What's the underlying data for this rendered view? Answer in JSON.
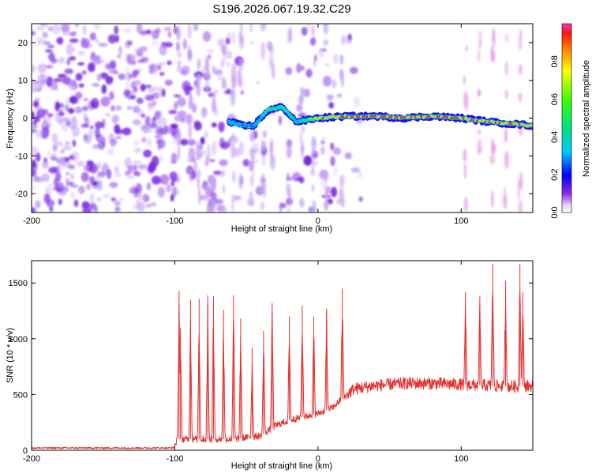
{
  "title": "S196.2026.067.19.32.C29",
  "colors": {
    "snr_line": "#e53030",
    "spec_noise": "#7a28e0",
    "frame": "#000000"
  },
  "chart_data": [
    {
      "type": "heatmap",
      "title": "S196.2026.067.19.32.C29",
      "xlabel": "Height of straight line (km)",
      "ylabel": "Frequency (Hz)",
      "xlim": [
        -200,
        150
      ],
      "ylim": [
        -25,
        25
      ],
      "x_ticks": [
        -200,
        -100,
        0,
        100
      ],
      "x_tick_labels": [
        "-200",
        "-100",
        "0",
        "100"
      ],
      "y_ticks": [
        20,
        10,
        0,
        -10,
        -20
      ],
      "y_tick_labels": [
        "20",
        "10",
        "0",
        "-10",
        "-20"
      ],
      "colorbar": {
        "label": "Normalized spectral amplitude",
        "range": [
          0,
          1
        ],
        "ticks": [
          "0.0",
          "0.2",
          "0.4",
          "0.6",
          "0.8"
        ],
        "tick_values": [
          0,
          0.2,
          0.4,
          0.6,
          0.8
        ],
        "colormap": "rainbow (purple-blue-cyan-green-yellow-red)"
      },
      "ridge": {
        "x": [
          -62,
          -52,
          -45,
          -35,
          -25,
          -15,
          0,
          20,
          40,
          60,
          80,
          100,
          120,
          150
        ],
        "frequency": [
          -1,
          -2,
          -2,
          2,
          3,
          -1,
          0,
          0.5,
          0.5,
          0,
          0.5,
          0,
          -1,
          -2
        ],
        "peak_amplitude": [
          0.4,
          0.35,
          0.3,
          0.55,
          0.6,
          0.4,
          0.9,
          0.95,
          0.95,
          0.95,
          0.95,
          0.95,
          0.9,
          0.95
        ]
      },
      "noise_region": [
        -200,
        -20
      ]
    },
    {
      "type": "line",
      "xlabel": "Height of straight line (km)",
      "ylabel": "SNR (10 * v/v)",
      "xlim": [
        -200,
        150
      ],
      "ylim": [
        0,
        1700
      ],
      "x_ticks": [
        -200,
        -100,
        0,
        100
      ],
      "x_tick_labels": [
        "-200",
        "-100",
        "0",
        "100"
      ],
      "y_ticks": [
        0,
        500,
        1000,
        1500
      ],
      "y_tick_labels": [
        "0",
        "500",
        "1000",
        "1500"
      ],
      "baseline": [
        [
          -200,
          18
        ],
        [
          -101,
          18
        ],
        [
          -98,
          100
        ],
        [
          -80,
          100
        ],
        [
          -60,
          100
        ],
        [
          -40,
          130
        ],
        [
          -30,
          220
        ],
        [
          -20,
          270
        ],
        [
          -10,
          300
        ],
        [
          0,
          330
        ],
        [
          10,
          380
        ],
        [
          15,
          440
        ],
        [
          25,
          550
        ],
        [
          40,
          580
        ],
        [
          60,
          600
        ],
        [
          80,
          600
        ],
        [
          100,
          590
        ],
        [
          120,
          580
        ],
        [
          140,
          570
        ],
        [
          150,
          580
        ]
      ],
      "spikes": [
        {
          "x": -97,
          "y": 1430
        },
        {
          "x": -96,
          "y": 1100
        },
        {
          "x": -89,
          "y": 1350
        },
        {
          "x": -83,
          "y": 1360
        },
        {
          "x": -77,
          "y": 1390
        },
        {
          "x": -73,
          "y": 1380
        },
        {
          "x": -66,
          "y": 1260
        },
        {
          "x": -59,
          "y": 1390
        },
        {
          "x": -54,
          "y": 1180
        },
        {
          "x": -46,
          "y": 920
        },
        {
          "x": -38,
          "y": 1070
        },
        {
          "x": -32,
          "y": 1320
        },
        {
          "x": -20,
          "y": 1200
        },
        {
          "x": -11,
          "y": 1300
        },
        {
          "x": -3,
          "y": 1200
        },
        {
          "x": 6,
          "y": 1270
        },
        {
          "x": 17,
          "y": 1450
        },
        {
          "x": 103,
          "y": 1420
        },
        {
          "x": 113,
          "y": 1380
        },
        {
          "x": 122,
          "y": 1670
        },
        {
          "x": 131,
          "y": 1520
        },
        {
          "x": 141,
          "y": 1670
        },
        {
          "x": 143,
          "y": 1420
        }
      ]
    }
  ]
}
